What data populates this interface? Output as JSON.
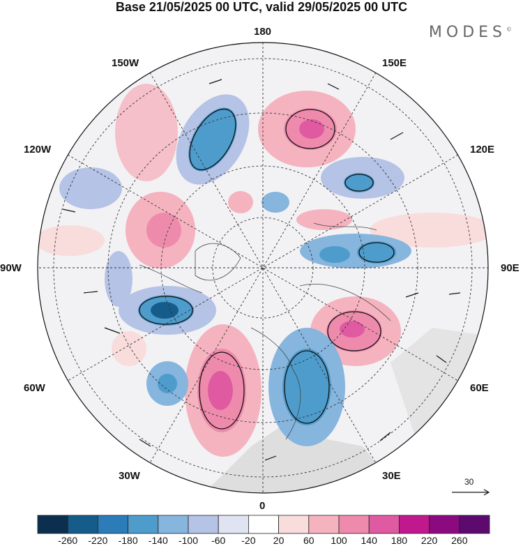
{
  "title": "Base 21/05/2025 00 UTC, valid 29/05/2025 00 UTC",
  "brand": "MODES",
  "brand_mark": "©",
  "longitude_labels": {
    "l180": "180",
    "l150w": "150W",
    "l150e": "150E",
    "l120w": "120W",
    "l120e": "120E",
    "l90w": "90W",
    "l90e": "90E",
    "l60w": "60W",
    "l60e": "60E",
    "l30w": "30W",
    "l30e": "30E",
    "l0": "0"
  },
  "vector_scale": "30",
  "colorbar": {
    "labels": [
      "-260",
      "-220",
      "-180",
      "-140",
      "-100",
      "-60",
      "-20",
      "20",
      "60",
      "100",
      "140",
      "180",
      "220",
      "260"
    ],
    "colors": [
      "#0d2f4f",
      "#155c8a",
      "#2b7cb8",
      "#4e9ccc",
      "#86b5de",
      "#b4c3e6",
      "#e0e3f2",
      "#ffffff",
      "#f9dcdc",
      "#f5b3bf",
      "#ee8bad",
      "#e05aa2",
      "#c0198d",
      "#8c0a80",
      "#5c0a6e"
    ]
  },
  "anomaly_colors": {
    "neg_weak": "#e0e3f2",
    "neg_mid": "#86b5de",
    "neg_strong": "#2b7cb8",
    "pos_weak": "#f9dcdc",
    "pos_mid": "#f5b3bf",
    "pos_strong": "#e05aa2"
  }
}
